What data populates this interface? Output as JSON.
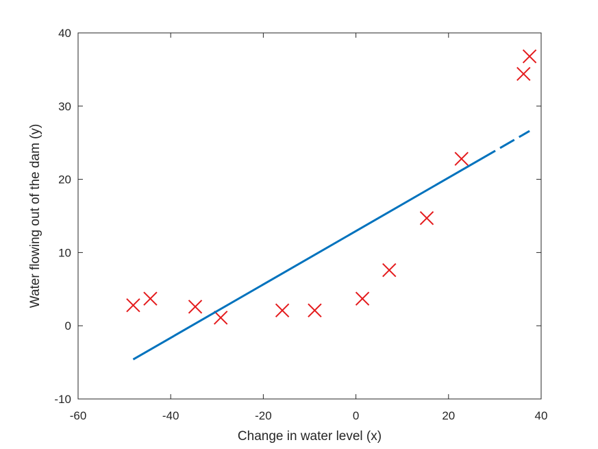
{
  "chart_data": {
    "type": "scatter",
    "title": "",
    "xlabel": "Change in water level (x)",
    "ylabel": "Water flowing out of the dam (y)",
    "xlim": [
      -60,
      40
    ],
    "ylim": [
      -10,
      40
    ],
    "xticks": [
      -60,
      -40,
      -20,
      0,
      20,
      40
    ],
    "yticks": [
      -10,
      0,
      10,
      20,
      30,
      40
    ],
    "grid": false,
    "legend": "none",
    "series": [
      {
        "type": "scatter",
        "marker": "x",
        "color": "#e41a1c",
        "points": [
          {
            "x": -48.1,
            "y": 2.8
          },
          {
            "x": -44.4,
            "y": 3.7
          },
          {
            "x": -34.7,
            "y": 2.6
          },
          {
            "x": -29.2,
            "y": 1.1
          },
          {
            "x": -15.9,
            "y": 2.1
          },
          {
            "x": -8.9,
            "y": 2.1
          },
          {
            "x": 1.4,
            "y": 3.7
          },
          {
            "x": 7.2,
            "y": 7.6
          },
          {
            "x": 15.3,
            "y": 14.7
          },
          {
            "x": 22.8,
            "y": 22.8
          },
          {
            "x": 36.2,
            "y": 34.4
          },
          {
            "x": 37.5,
            "y": 36.8
          }
        ]
      },
      {
        "type": "line",
        "style": "dashed",
        "color": "#0072bd",
        "x": [
          -48.1,
          37.5
        ],
        "y": [
          -4.6,
          26.6
        ]
      }
    ]
  }
}
